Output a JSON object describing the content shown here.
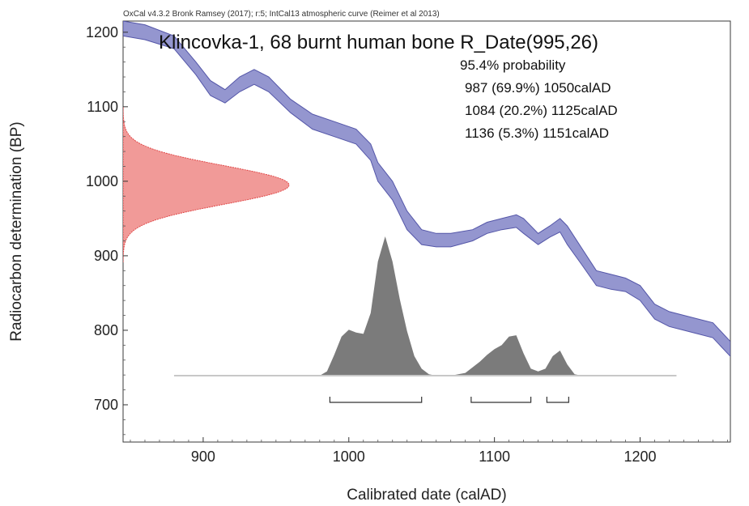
{
  "chart_data": {
    "type": "area",
    "header": "OxCal v4.3.2 Bronk Ramsey (2017); r:5; IntCal13 atmospheric curve (Reimer et al 2013)",
    "title": "Klincovka-1, 68 burnt human bone R_Date(995,26)",
    "probability_heading": "95.4% probability",
    "probability_ranges": [
      "987 (69.9%) 1050calAD",
      "1084 (20.2%) 1125calAD",
      "1136 (5.3%) 1151calAD"
    ],
    "range_brackets": [
      [
        987,
        1050
      ],
      [
        1084,
        1125
      ],
      [
        1136,
        1151
      ]
    ],
    "xlabel": "Calibrated date (calAD)",
    "ylabel": "Radiocarbon determination (BP)",
    "xlim": [
      845,
      1262
    ],
    "ylim": [
      650,
      1215
    ],
    "x_ticks": [
      900,
      1000,
      1100,
      1200
    ],
    "y_ticks": [
      700,
      800,
      900,
      1000,
      1100,
      1200
    ],
    "colors": {
      "curve_fill": "#9496cf",
      "curve_edge": "#5456a8",
      "measurement_fill": "#f19a98",
      "measurement_edge": "#e04848",
      "posterior_fill": "#7b7b7b",
      "baseline": "#c8c8c8",
      "bracket": "#333333"
    },
    "calibration_curve": {
      "x": [
        845,
        860,
        880,
        895,
        905,
        915,
        925,
        935,
        945,
        960,
        975,
        990,
        1005,
        1015,
        1020,
        1030,
        1040,
        1050,
        1060,
        1070,
        1085,
        1095,
        1105,
        1115,
        1120,
        1130,
        1138,
        1145,
        1150,
        1160,
        1170,
        1180,
        1190,
        1200,
        1210,
        1220,
        1230,
        1240,
        1250,
        1262
      ],
      "upper": [
        1215,
        1210,
        1195,
        1160,
        1135,
        1123,
        1140,
        1150,
        1140,
        1110,
        1090,
        1080,
        1070,
        1050,
        1025,
        1000,
        960,
        935,
        930,
        930,
        935,
        945,
        950,
        955,
        950,
        930,
        940,
        950,
        940,
        910,
        880,
        875,
        870,
        860,
        835,
        825,
        820,
        815,
        810,
        785
      ],
      "lower": [
        1195,
        1190,
        1178,
        1143,
        1115,
        1105,
        1120,
        1130,
        1120,
        1092,
        1070,
        1060,
        1050,
        1028,
        1000,
        975,
        935,
        915,
        912,
        912,
        920,
        930,
        935,
        938,
        930,
        915,
        925,
        932,
        915,
        888,
        860,
        855,
        852,
        840,
        815,
        805,
        800,
        795,
        790,
        765
      ]
    },
    "measurement": {
      "mean": 995,
      "sigma": 26
    },
    "posterior": {
      "x": [
        880,
        980,
        985,
        990,
        995,
        1000,
        1005,
        1010,
        1015,
        1020,
        1025,
        1030,
        1035,
        1040,
        1045,
        1050,
        1055,
        1060,
        1070,
        1080,
        1090,
        1095,
        1100,
        1105,
        1110,
        1115,
        1120,
        1125,
        1130,
        1135,
        1140,
        1145,
        1150,
        1155,
        1160,
        1225
      ],
      "density": [
        0,
        0,
        0.03,
        0.15,
        0.28,
        0.33,
        0.31,
        0.3,
        0.45,
        0.82,
        1.0,
        0.82,
        0.55,
        0.32,
        0.14,
        0.05,
        0.01,
        0,
        0,
        0.02,
        0.1,
        0.15,
        0.19,
        0.22,
        0.28,
        0.29,
        0.16,
        0.05,
        0.03,
        0.05,
        0.14,
        0.18,
        0.08,
        0.01,
        0,
        0
      ]
    }
  }
}
